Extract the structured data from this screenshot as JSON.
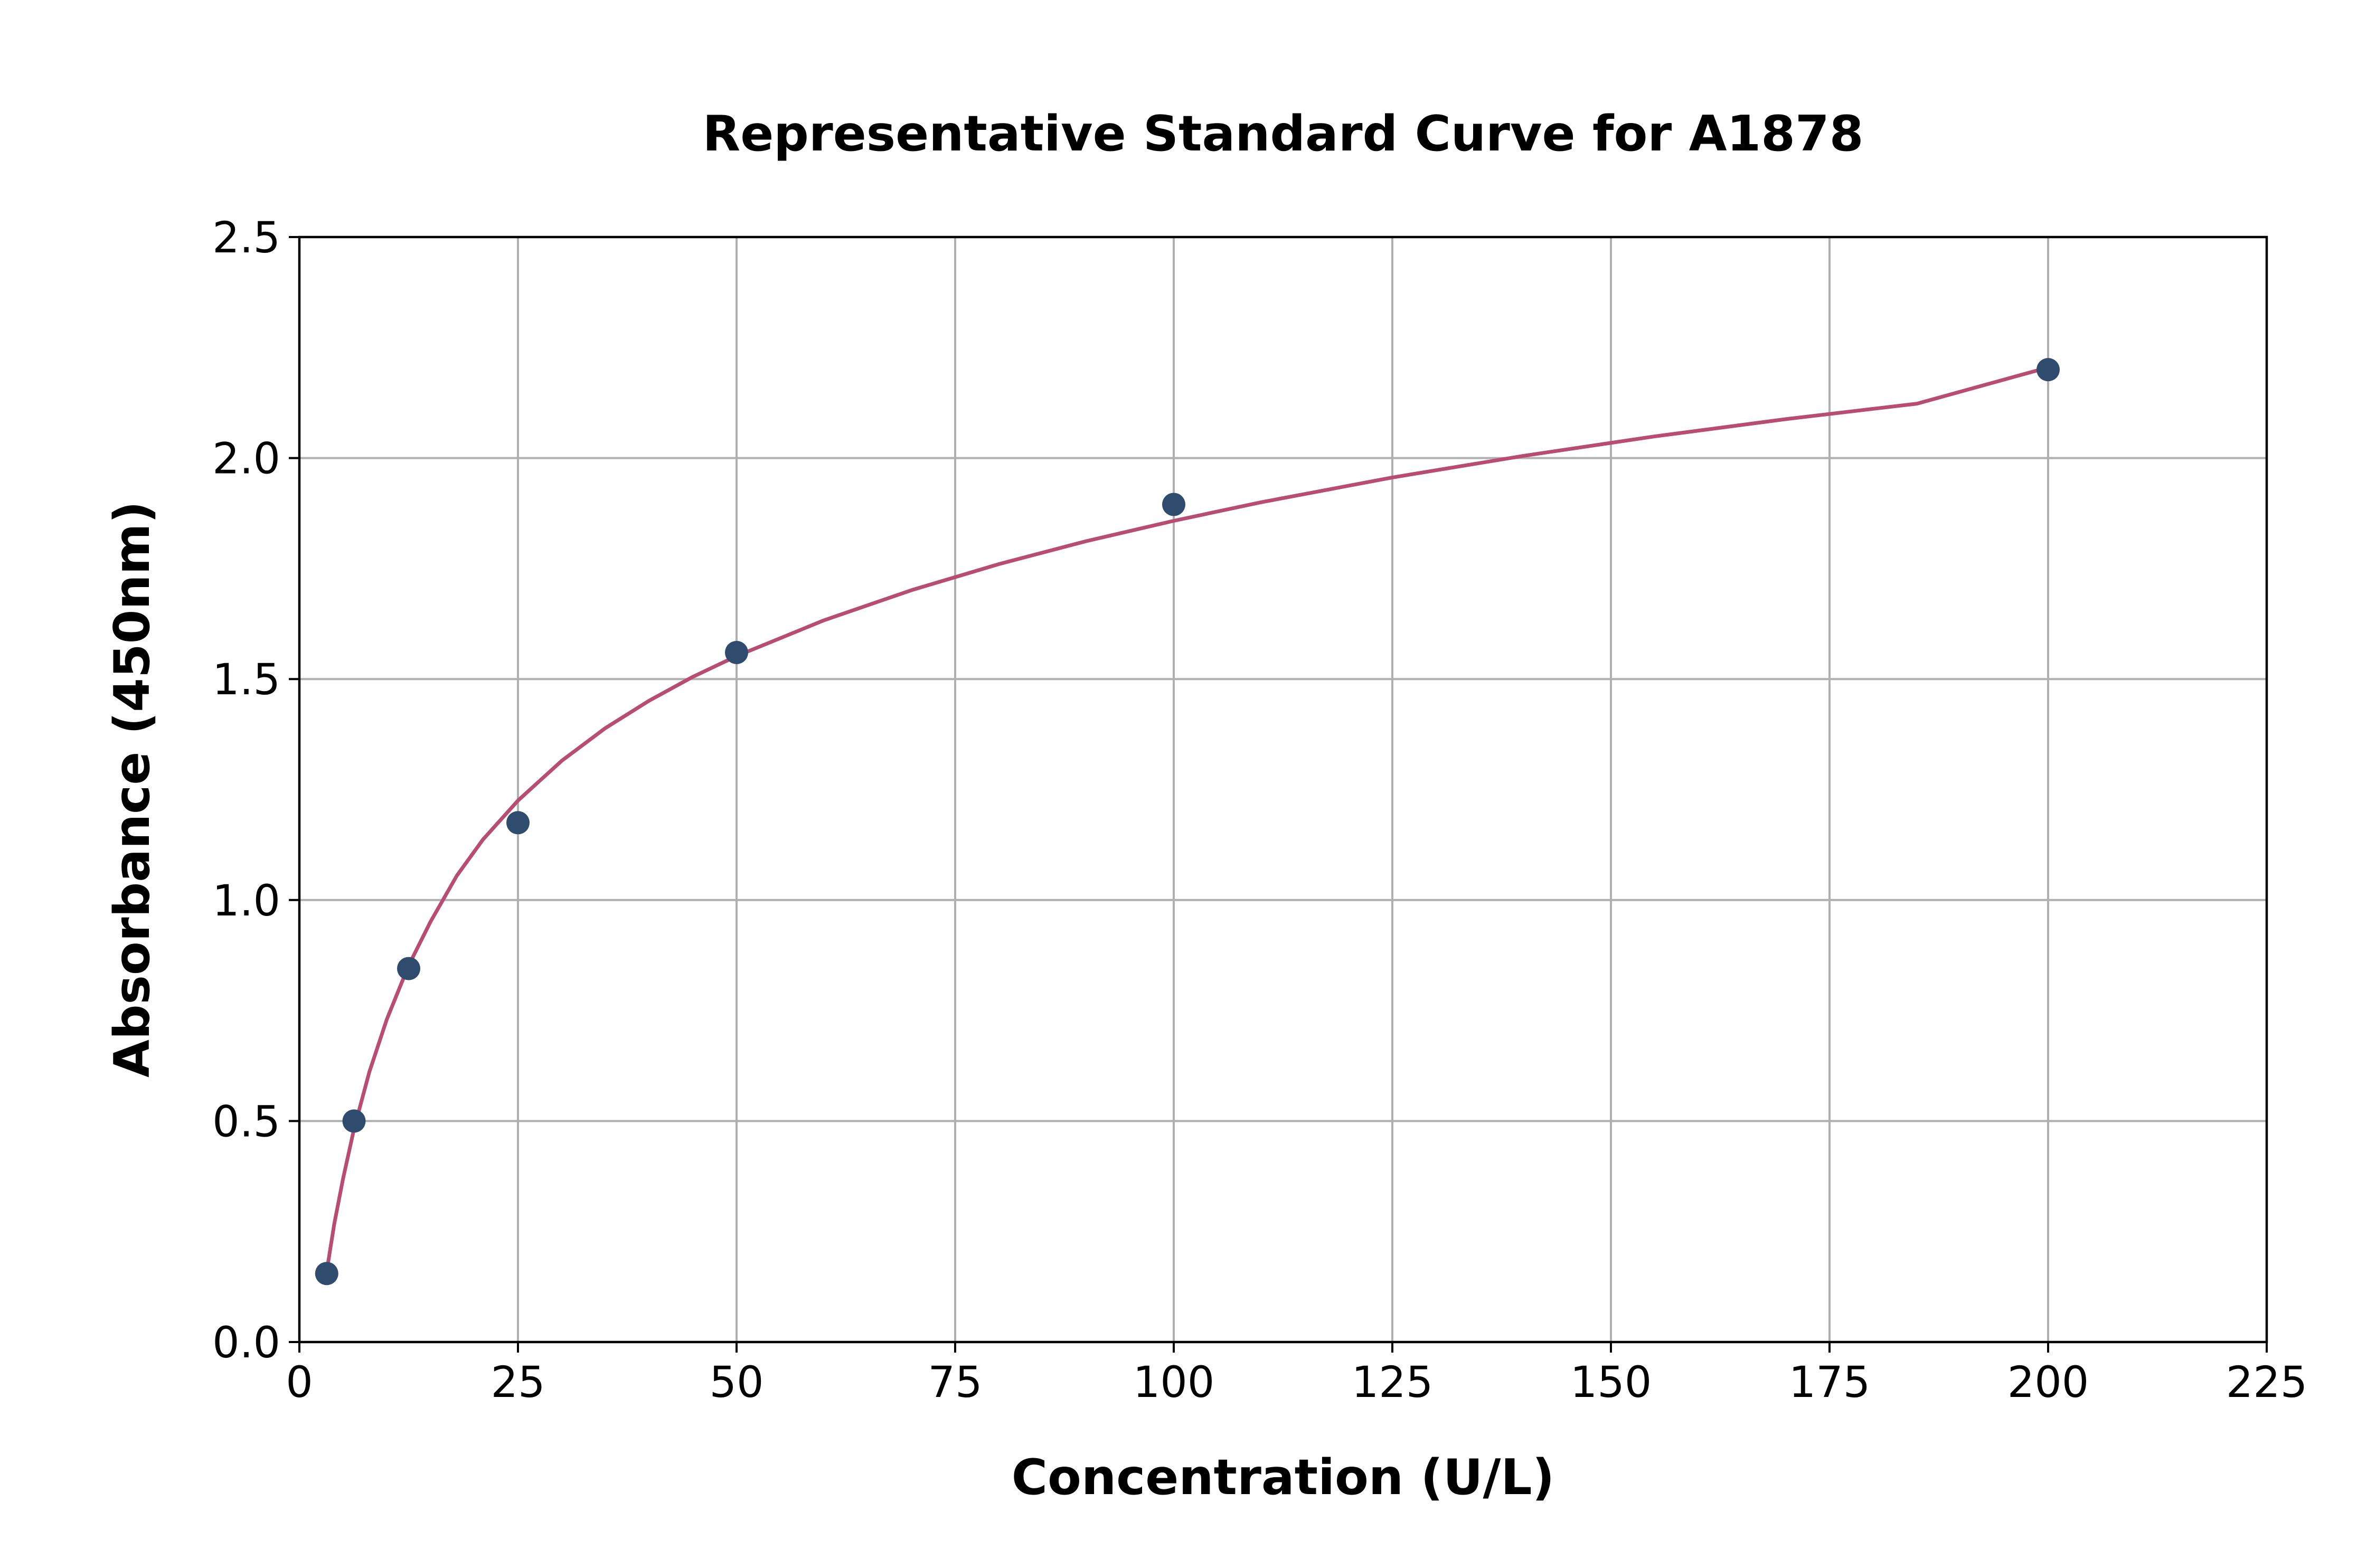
{
  "chart_data": {
    "type": "scatter",
    "title": "Representative Standard Curve for A1878",
    "xlabel": "Concentration (U/L)",
    "ylabel": "Absorbance (450nm)",
    "xlim": [
      0,
      225
    ],
    "ylim": [
      0,
      2.5
    ],
    "xticks": [
      "0",
      "25",
      "50",
      "75",
      "100",
      "125",
      "150",
      "175",
      "200",
      "225"
    ],
    "yticks": [
      "0.0",
      "0.5",
      "1.0",
      "1.5",
      "2.0",
      "2.5"
    ],
    "grid": true,
    "series": [
      {
        "kind": "points",
        "x": [
          3.125,
          6.25,
          12.5,
          25,
          50,
          100,
          200
        ],
        "y": [
          0.155,
          0.5,
          0.845,
          1.175,
          1.56,
          1.895,
          2.2
        ],
        "color": "#2f4b6e"
      },
      {
        "kind": "fit-curve",
        "x": [
          3.125,
          4,
          5,
          6.25,
          8,
          10,
          12.5,
          15,
          18,
          21,
          25,
          30,
          35,
          40,
          45,
          50,
          60,
          70,
          80,
          90,
          100,
          110,
          125,
          140,
          155,
          170,
          185,
          200
        ],
        "y": [
          0.16,
          0.268,
          0.37,
          0.482,
          0.611,
          0.73,
          0.852,
          0.951,
          1.055,
          1.137,
          1.225,
          1.315,
          1.389,
          1.451,
          1.505,
          1.552,
          1.633,
          1.701,
          1.76,
          1.812,
          1.858,
          1.9,
          1.956,
          2.005,
          2.049,
          2.088,
          2.123,
          2.205
        ],
        "color": "#b84c73"
      }
    ]
  }
}
